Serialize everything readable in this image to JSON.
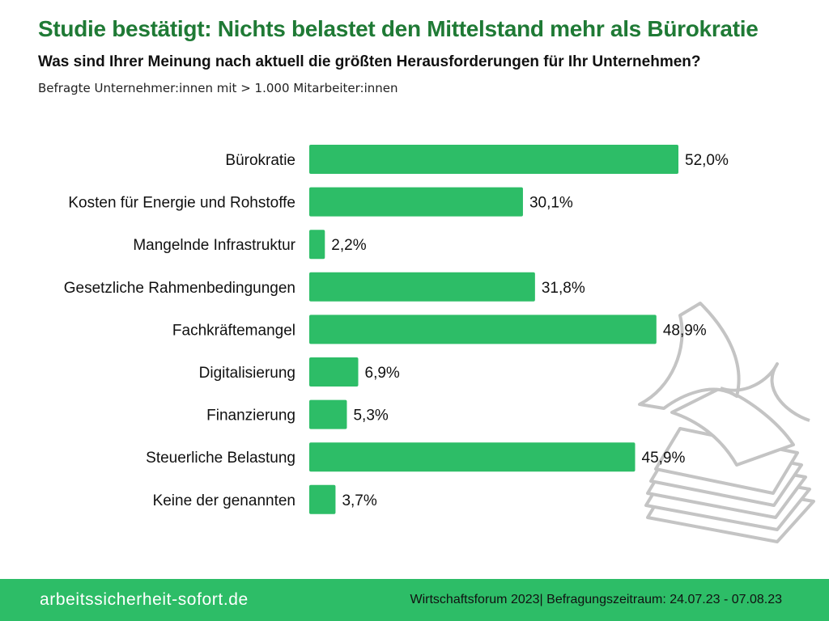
{
  "header": {
    "title": "Studie bestätigt: Nichts belastet den Mittelstand mehr als Bürokratie",
    "subtitle": "Was sind Ihrer Meinung nach aktuell die größten Herausforderungen für Ihr Unternehmen?",
    "note": "Befragte Unternehmer:innen mit > 1.000 Mitarbeiter:innen"
  },
  "chart_data": {
    "type": "bar",
    "orientation": "horizontal",
    "title": "Was sind Ihrer Meinung nach aktuell die größten Herausforderungen für Ihr Unternehmen?",
    "xlabel": "",
    "ylabel": "",
    "xlim": [
      0,
      60
    ],
    "grid": false,
    "categories": [
      "Bürokratie",
      "Kosten für Energie und Rohstoffe",
      "Mangelnde Infrastruktur",
      "Gesetzliche Rahmenbedingungen",
      "Fachkräftemangel",
      "Digitalisierung",
      "Finanzierung",
      "Steuerliche Belastung",
      "Keine der genannten"
    ],
    "values": [
      52.0,
      30.1,
      2.2,
      31.8,
      48.9,
      6.9,
      5.3,
      45.9,
      3.7
    ],
    "labels": [
      "52,0%",
      "30,1%",
      "2,2%",
      "31,8%",
      "48,9%",
      "6,9%",
      "5,3%",
      "45,9%",
      "3,7%"
    ],
    "bar_color": "#2dbd67"
  },
  "footer": {
    "website": "arbeitssicherheit-sofort.de",
    "source": "Wirtschaftsforum 2023| Befragungszeitraum: 24.07.23 - 07.08.23"
  },
  "colors": {
    "title": "#1f7a35",
    "footer_bg": "#2dbd67",
    "illustration": "#c4c4c4"
  }
}
